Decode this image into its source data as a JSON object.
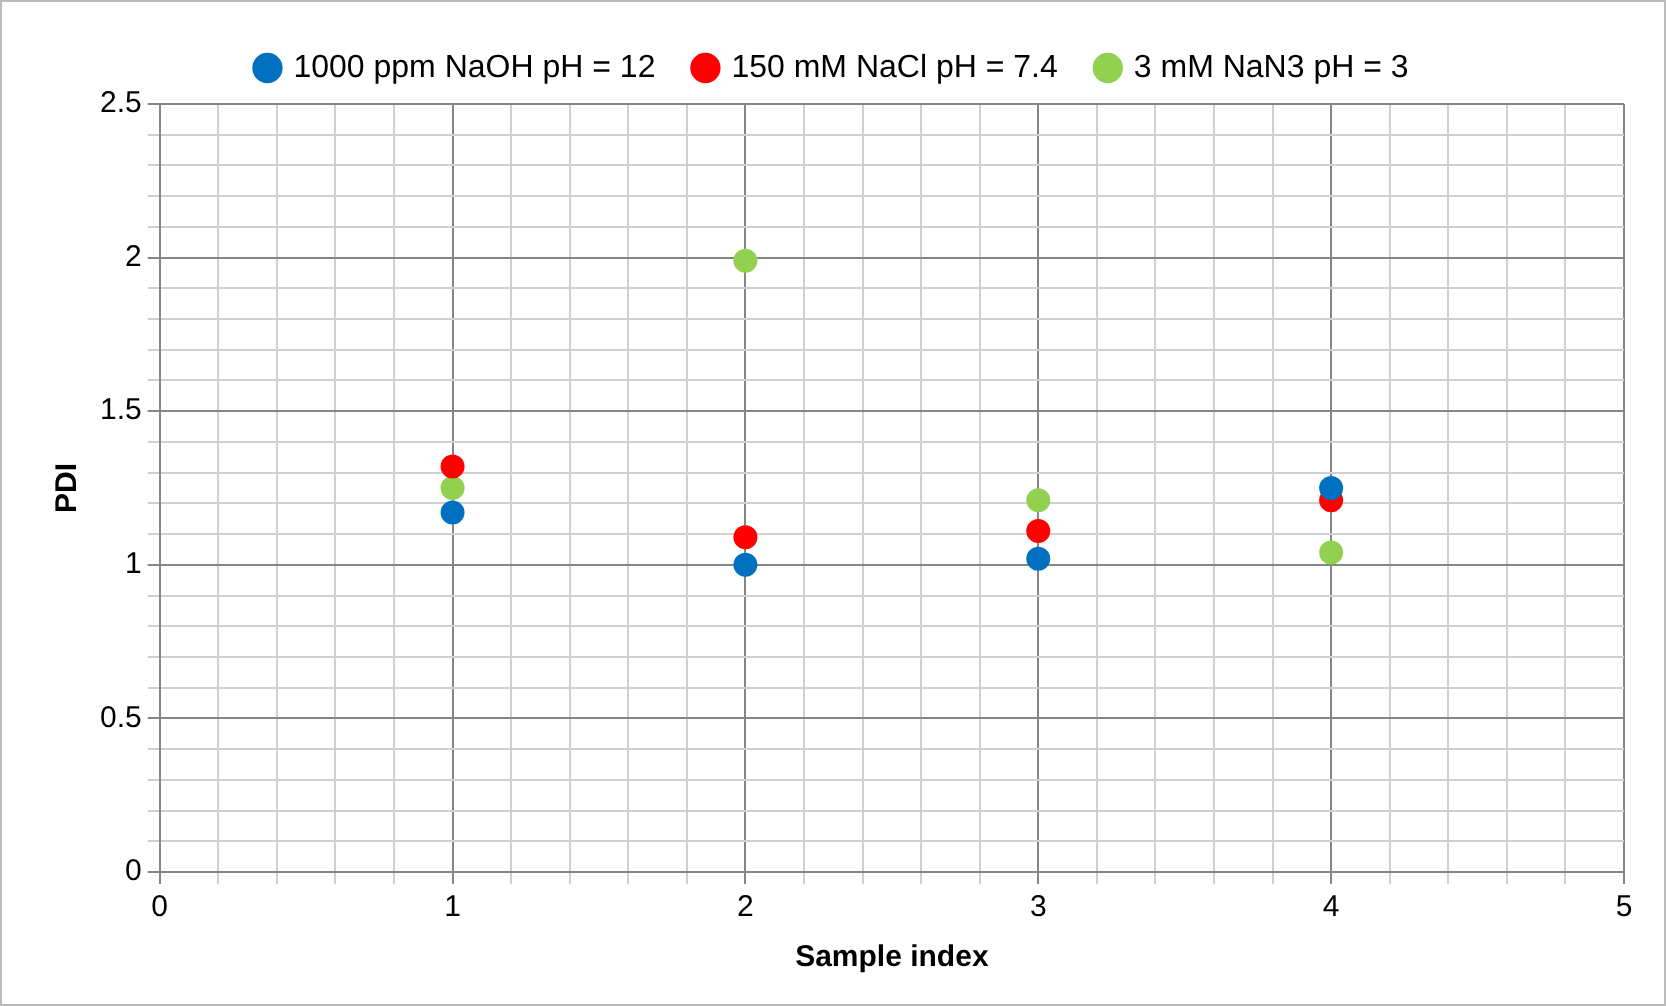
{
  "chart_data": {
    "type": "scatter",
    "xlabel": "Sample index",
    "ylabel": "PDI",
    "series": [
      {
        "name": "1000 ppm NaOH pH = 12",
        "color": "#0070c0",
        "x": [
          1,
          2,
          3,
          4
        ],
        "values": [
          1.17,
          1.0,
          1.02,
          1.25
        ]
      },
      {
        "name": "150 mM NaCl pH = 7.4",
        "color": "#ff0000",
        "x": [
          1,
          2,
          3,
          4
        ],
        "values": [
          1.32,
          1.09,
          1.11,
          1.21
        ]
      },
      {
        "name": "3 mM NaN3 pH = 3",
        "color": "#92d050",
        "x": [
          1,
          2,
          3,
          4
        ],
        "values": [
          1.25,
          1.99,
          1.21,
          1.04
        ]
      }
    ],
    "xlim": [
      0,
      5
    ],
    "xticks": [
      0,
      {
        "value": 0.2,
        "label": null
      },
      {
        "value": 0.4,
        "label": null
      },
      {
        "value": 0.6,
        "label": null
      },
      {
        "value": 0.8,
        "label": null
      },
      1,
      {
        "value": 1.2,
        "label": null
      },
      {
        "value": 1.4,
        "label": null
      },
      {
        "value": 1.6,
        "label": null
      },
      {
        "value": 1.8,
        "label": null
      },
      2,
      {
        "value": 2.2,
        "label": null
      },
      {
        "value": 2.4,
        "label": null
      },
      {
        "value": 2.6,
        "label": null
      },
      {
        "value": 2.8,
        "label": null
      },
      3,
      {
        "value": 3.2,
        "label": null
      },
      {
        "value": 3.4,
        "label": null
      },
      {
        "value": 3.6,
        "label": null
      },
      {
        "value": 3.8,
        "label": null
      },
      4,
      {
        "value": 4.2,
        "label": null
      },
      {
        "value": 4.4,
        "label": null
      },
      {
        "value": 4.6,
        "label": null
      },
      {
        "value": 4.8,
        "label": null
      },
      5
    ],
    "ylim": [
      0,
      2.5
    ],
    "yticks": [
      0,
      {
        "value": 0.1,
        "label": null
      },
      {
        "value": 0.2,
        "label": null
      },
      {
        "value": 0.3,
        "label": null
      },
      {
        "value": 0.4,
        "label": null
      },
      0.5,
      {
        "value": 0.6,
        "label": null
      },
      {
        "value": 0.7,
        "label": null
      },
      {
        "value": 0.8,
        "label": null
      },
      {
        "value": 0.9,
        "label": null
      },
      1,
      {
        "value": 1.1,
        "label": null
      },
      {
        "value": 1.2,
        "label": null
      },
      {
        "value": 1.3,
        "label": null
      },
      {
        "value": 1.4,
        "label": null
      },
      1.5,
      {
        "value": 1.6,
        "label": null
      },
      {
        "value": 1.7,
        "label": null
      },
      {
        "value": 1.8,
        "label": null
      },
      {
        "value": 1.9,
        "label": null
      },
      2,
      {
        "value": 2.1,
        "label": null
      },
      {
        "value": 2.2,
        "label": null
      },
      {
        "value": 2.3,
        "label": null
      },
      {
        "value": 2.4,
        "label": null
      },
      2.5
    ],
    "grid": true,
    "legend": "top",
    "marker": "circle"
  }
}
